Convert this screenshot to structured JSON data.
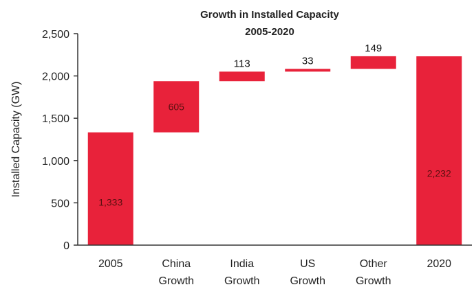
{
  "chart_data": {
    "type": "bar",
    "subtype": "waterfall",
    "title": "Growth in Installed Capacity",
    "subtitle": "2005-2020",
    "xlabel": "",
    "ylabel": "Installed Capacity (GW)",
    "ylim": [
      0,
      2500
    ],
    "yticks": [
      "0",
      "500",
      "1,000",
      "1,500",
      "2,000",
      "2,500"
    ],
    "ytick_values": [
      0,
      500,
      1000,
      1500,
      2000,
      2500
    ],
    "categories": [
      [
        "2005"
      ],
      [
        "China",
        "Growth"
      ],
      [
        "India",
        "Growth"
      ],
      [
        "US",
        "Growth"
      ],
      [
        "Other",
        "Growth"
      ],
      [
        "2020"
      ]
    ],
    "bars": [
      {
        "category": "2005",
        "base": 0,
        "value": 1333,
        "label": "1,333",
        "kind": "total"
      },
      {
        "category": "China Growth",
        "base": 1333,
        "value": 605,
        "label": "605",
        "kind": "increment"
      },
      {
        "category": "India Growth",
        "base": 1938,
        "value": 113,
        "label": "113",
        "kind": "increment"
      },
      {
        "category": "US Growth",
        "base": 2051,
        "value": 33,
        "label": "33",
        "kind": "increment"
      },
      {
        "category": "Other Growth",
        "base": 2084,
        "value": 149,
        "label": "149",
        "kind": "increment"
      },
      {
        "category": "2020",
        "base": 0,
        "value": 2232,
        "label": "2,232",
        "kind": "total"
      }
    ],
    "bar_color": "#e8223a",
    "grid": false,
    "legend": "none"
  }
}
